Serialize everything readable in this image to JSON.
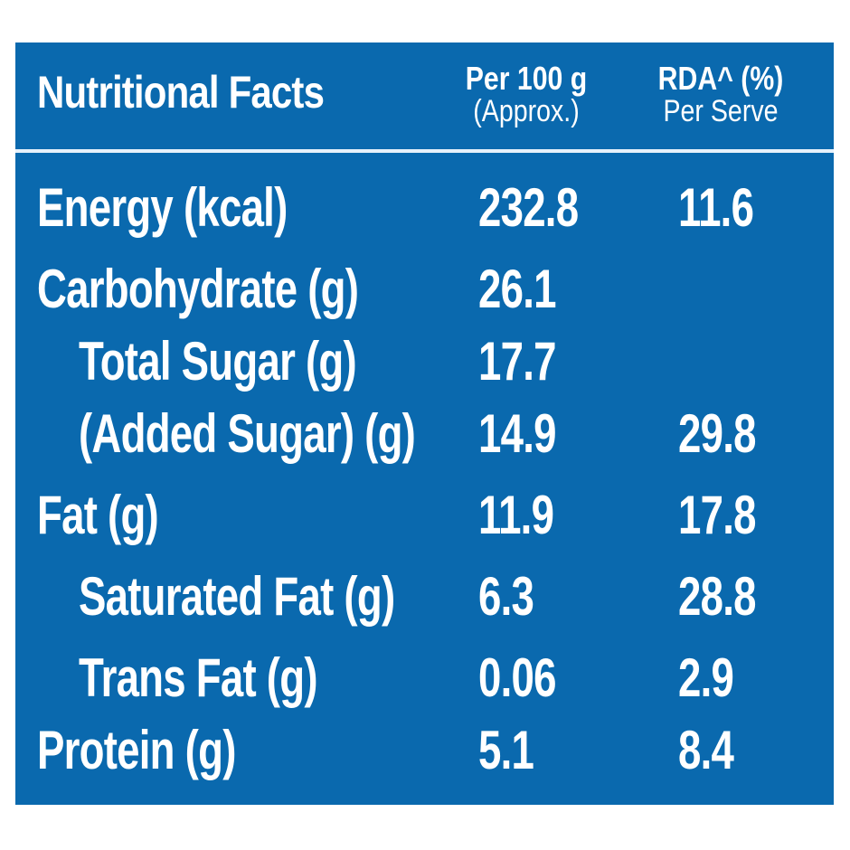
{
  "header": {
    "title": "Nutritional Facts",
    "per100_line1": "Per 100 g",
    "per100_line2": "(Approx.)",
    "rda_line1": "RDA^ (%)",
    "rda_line2": "Per Serve"
  },
  "colors": {
    "background": "#0a69ae",
    "text": "#ffffff"
  },
  "rows": [
    {
      "name": "Energy (kcal)",
      "per100": "232.8",
      "rda": "11.6"
    },
    {
      "name": "Carbohydrate (g)",
      "per100": "26.1",
      "rda": ""
    },
    {
      "name": "Total Sugar (g)",
      "per100": "17.7",
      "rda": ""
    },
    {
      "name": "(Added Sugar) (g)",
      "per100": "14.9",
      "rda": "29.8"
    },
    {
      "name": "Fat (g)",
      "per100": "11.9",
      "rda": "17.8"
    },
    {
      "name": "Saturated Fat (g)",
      "per100": "6.3",
      "rda": "28.8"
    },
    {
      "name": "Trans Fat (g)",
      "per100": "0.06",
      "rda": "2.9"
    },
    {
      "name": "Protein (g)",
      "per100": "5.1",
      "rda": "8.4"
    }
  ]
}
